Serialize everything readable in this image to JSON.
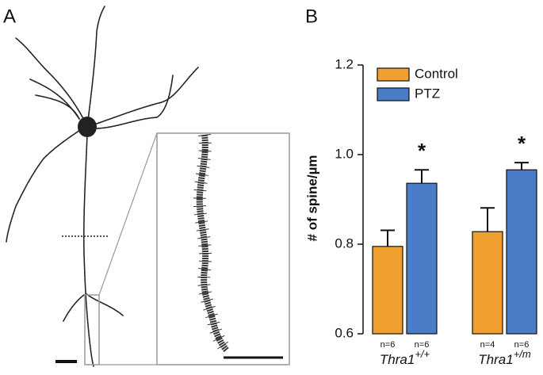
{
  "panels": {
    "a_label": "A",
    "b_label": "B"
  },
  "chart_data": {
    "type": "bar",
    "y_label": "# of spine/µm",
    "categories": [
      "Thra1",
      "Thra1"
    ],
    "category_superscripts": [
      "+/+",
      "+/m"
    ],
    "series": [
      {
        "name": "Control",
        "color": "#f0a030",
        "values": [
          0.795,
          0.828
        ],
        "errors": [
          0.036,
          0.053
        ],
        "n_labels": [
          "n=6",
          "n=4"
        ]
      },
      {
        "name": "PTZ",
        "color": "#4a7cc8",
        "values": [
          0.936,
          0.966
        ],
        "errors": [
          0.03,
          0.016
        ],
        "n_labels": [
          "n=6",
          "n=6"
        ],
        "significance": [
          "*",
          "*"
        ]
      }
    ],
    "ylim": [
      0.6,
      1.2
    ],
    "yticks": [
      0.6,
      0.8,
      {
        "value": 1,
        "label": "1.0"
      },
      1.2
    ],
    "legend": "top-left"
  }
}
